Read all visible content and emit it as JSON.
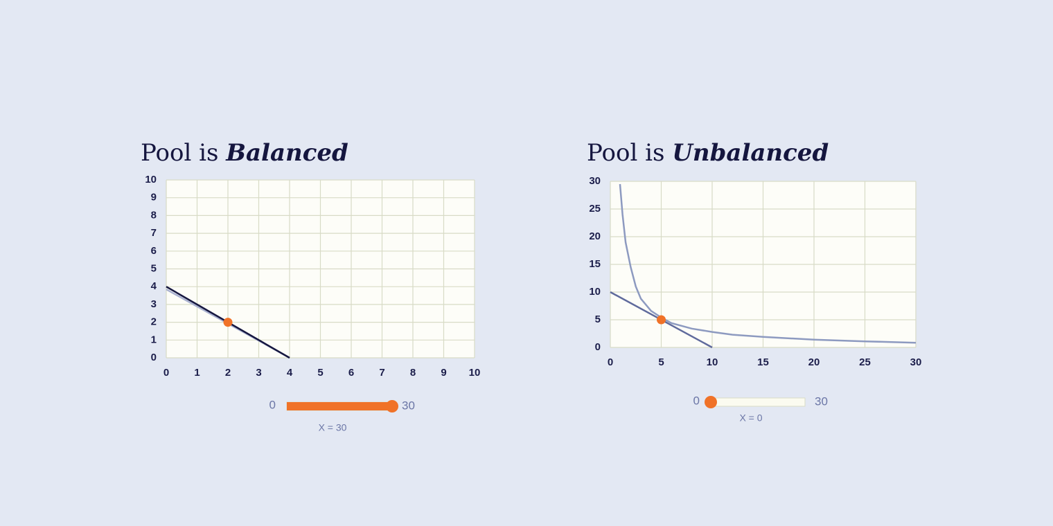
{
  "chart_data": [
    {
      "type": "line",
      "title": "Pool is",
      "title_emphasis": "Balanced",
      "xlim": [
        0,
        10
      ],
      "ylim": [
        0,
        10
      ],
      "xticks": [
        0,
        1,
        2,
        3,
        4,
        5,
        6,
        7,
        8,
        9,
        10
      ],
      "yticks": [
        0,
        1,
        2,
        3,
        4,
        5,
        6,
        7,
        8,
        9,
        10
      ],
      "grid": true,
      "series": [
        {
          "color": "#a9b1d0",
          "x": [
            0,
            4
          ],
          "values": [
            3.85,
            0
          ]
        },
        {
          "color": "#15163f",
          "x": [
            0,
            4
          ],
          "values": [
            4,
            0
          ]
        },
        {
          "color": "#f07228",
          "marker": true,
          "x": [
            2
          ],
          "values": [
            2
          ]
        }
      ],
      "slider": {
        "min": 0,
        "max": 30,
        "value": 30,
        "label": "X = 30",
        "color": "#f07228"
      }
    },
    {
      "type": "line",
      "title": "Pool is",
      "title_emphasis": "Unbalanced",
      "xlim": [
        0,
        30
      ],
      "ylim": [
        0,
        30
      ],
      "xticks": [
        0,
        5,
        10,
        15,
        20,
        25,
        30
      ],
      "yticks": [
        0,
        5,
        10,
        15,
        20,
        25,
        30
      ],
      "grid": true,
      "series": [
        {
          "color": "#8d9ac0",
          "x": [
            0.95,
            1.2,
            1.5,
            2,
            2.5,
            3,
            4,
            5,
            6,
            8,
            10,
            12,
            15,
            20,
            25,
            30
          ],
          "values": [
            29.5,
            24,
            19,
            14.5,
            11,
            8.8,
            6.6,
            5.4,
            4.4,
            3.4,
            2.8,
            2.3,
            1.9,
            1.4,
            1.1,
            0.85
          ]
        },
        {
          "color": "#5f6a9c",
          "x": [
            0,
            10
          ],
          "values": [
            10,
            0
          ]
        },
        {
          "color": "#f07228",
          "marker": true,
          "x": [
            5
          ],
          "values": [
            5
          ]
        }
      ],
      "slider": {
        "min": 0,
        "max": 30,
        "value": 0,
        "label": "X = 0",
        "color": "#f07228"
      }
    }
  ]
}
